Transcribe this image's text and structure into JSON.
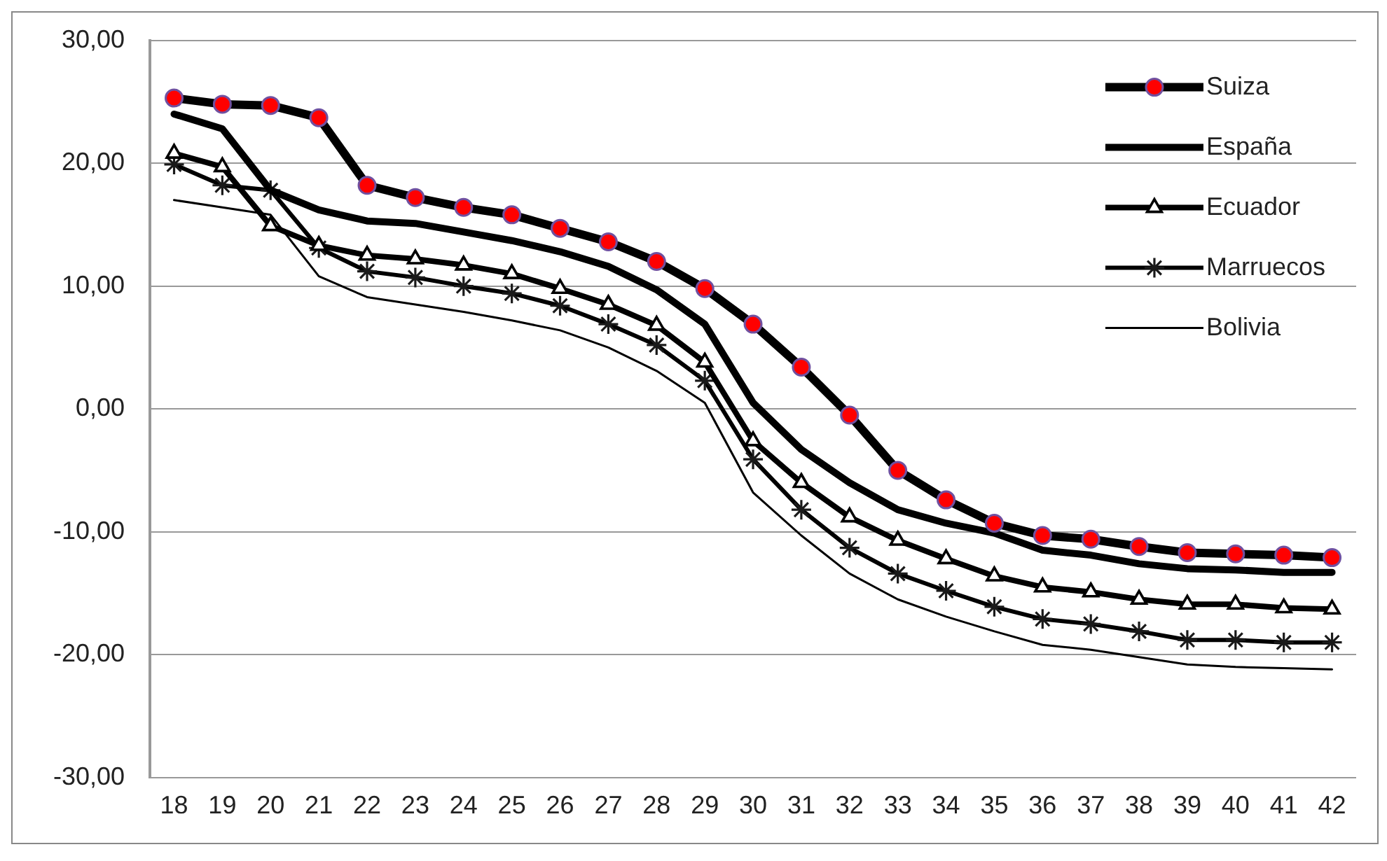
{
  "chart_data": {
    "type": "line",
    "categories": [
      "18",
      "19",
      "20",
      "21",
      "22",
      "23",
      "24",
      "25",
      "26",
      "27",
      "28",
      "29",
      "30",
      "31",
      "32",
      "33",
      "34",
      "35",
      "36",
      "37",
      "38",
      "39",
      "40",
      "41",
      "42"
    ],
    "series": [
      {
        "name": "Suiza",
        "color": "#000000",
        "colors": [
          "#ff0000",
          "#ff0000",
          "#ff0000",
          "#ff0000",
          "#ff0000",
          "#ff0000",
          "#ff0000",
          "#ff0000",
          "#ff0000",
          "#ff0000",
          "#ff0000",
          "#ff0000",
          "#ff0000",
          "#ff0000",
          "#ff0000",
          "#ff0000",
          "#ff0000",
          "#ff0000",
          "#ff0000",
          "#ff0000",
          "#ff0000",
          "#ff0000",
          "#ff0000",
          "#ff0000",
          "#ff0000"
        ],
        "marker": "circle",
        "values": [
          25.3,
          24.8,
          24.7,
          23.7,
          18.2,
          17.2,
          16.4,
          15.8,
          14.7,
          13.6,
          12.0,
          9.8,
          6.9,
          3.4,
          -0.5,
          -5.0,
          -7.4,
          -9.3,
          -10.3,
          -10.6,
          -11.2,
          -11.7,
          -11.8,
          -11.9,
          -12.1
        ]
      },
      {
        "name": "España",
        "color": "#000000",
        "marker": "none",
        "values": [
          24.0,
          22.8,
          17.8,
          16.2,
          15.3,
          15.1,
          14.4,
          13.7,
          12.8,
          11.6,
          9.7,
          6.9,
          0.5,
          -3.3,
          -6.0,
          -8.2,
          -9.3,
          -10.1,
          -11.5,
          -11.9,
          -12.6,
          -13.0,
          -13.1,
          -13.3,
          -13.3
        ]
      },
      {
        "name": "Ecuador",
        "color": "#000000",
        "marker": "triangle",
        "values": [
          20.8,
          19.7,
          14.9,
          13.3,
          12.5,
          12.2,
          11.7,
          11.0,
          9.8,
          8.5,
          6.8,
          3.8,
          -2.6,
          -6.0,
          -8.8,
          -10.7,
          -12.2,
          -13.6,
          -14.5,
          -14.9,
          -15.5,
          -15.9,
          -15.9,
          -16.2,
          -16.3
        ]
      },
      {
        "name": "Marruecos",
        "color": "#000000",
        "colors": [
          "#1a1a1a",
          "#1a1a1a",
          "#1a1a1a",
          "#1a1a1a",
          "#1a1a1a",
          "#1a1a1a",
          "#1a1a1a",
          "#1a1a1a",
          "#1a1a1a",
          "#1a1a1a",
          "#1a1a1a",
          "#1a1a1a",
          "#1a1a1a",
          "#1a1a1a",
          "#1a1a1a",
          "#1a1a1a",
          "#1a1a1a",
          "#1a1a1a",
          "#1a1a1a",
          "#1a1a1a",
          "#1a1a1a",
          "#1a1a1a",
          "#1a1a1a",
          "#1a1a1a",
          "#1a1a1a"
        ],
        "marker": "cross",
        "values": [
          19.9,
          18.2,
          17.8,
          13.1,
          11.2,
          10.7,
          10.0,
          9.4,
          8.4,
          6.9,
          5.2,
          2.3,
          -4.1,
          -8.2,
          -11.3,
          -13.4,
          -14.8,
          -16.1,
          -17.1,
          -17.5,
          -18.1,
          -18.8,
          -18.8,
          -19.0,
          -19.0
        ]
      },
      {
        "name": "Bolivia",
        "color": "#000000",
        "marker": "none",
        "values": [
          17.0,
          16.4,
          15.8,
          10.8,
          9.1,
          8.5,
          7.9,
          7.2,
          6.4,
          5.0,
          3.1,
          0.5,
          -6.8,
          -10.3,
          -13.4,
          -15.5,
          -16.9,
          -18.1,
          -19.2,
          -19.6,
          -20.2,
          -20.8,
          -21.0,
          -21.1,
          -21.2
        ]
      }
    ],
    "ylim": [
      -30,
      30
    ],
    "yticks": [
      {
        "value": -30,
        "label": "-30,00"
      },
      {
        "value": -20,
        "label": "-20,00"
      },
      {
        "value": -10,
        "label": "-10,00"
      },
      {
        "value": 0,
        "label": "0,00"
      },
      {
        "value": 10,
        "label": "10,00"
      },
      {
        "value": 20,
        "label": "20,00"
      },
      {
        "value": 30,
        "label": "30,00"
      }
    ],
    "grid": "y",
    "legend": "top right",
    "line_style": "solid"
  }
}
